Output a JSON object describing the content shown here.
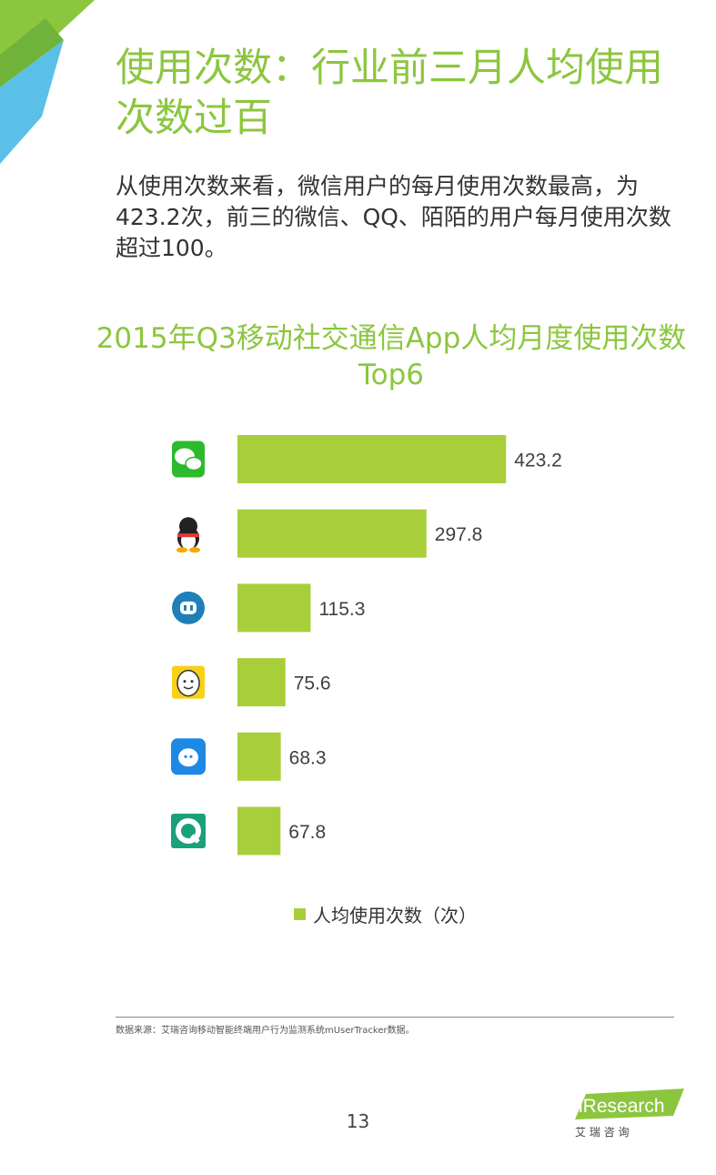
{
  "page": {
    "title": "使用次数：行业前三月人均使用次数过百",
    "subtitle": "从使用次数来看，微信用户的每月使用次数最高，为423.2次，前三的微信、QQ、陌陌的用户每月使用次数超过100。",
    "source": "数据来源：艾瑞咨询移动智能终端用户行为监测系统mUserTracker数据。",
    "page_number": "13",
    "logo_text": "iResearch",
    "logo_subtext": "艾 瑞 咨 询"
  },
  "colors": {
    "accent": "#8cc63f",
    "bar": "#a8cf3a",
    "corner_green": "#8cc63f",
    "corner_blue": "#5bc0e8"
  },
  "chart_data": {
    "type": "bar",
    "orientation": "horizontal",
    "title": "2015年Q3移动社交通信App人均月度使用次数Top6",
    "categories": [
      "wechat-icon",
      "qq-icon",
      "momo-icon",
      "app4-icon",
      "app5-icon",
      "app6-icon"
    ],
    "series": [
      {
        "name": "人均使用次数（次）",
        "values": [
          423.2,
          297.8,
          115.3,
          75.6,
          68.3,
          67.8
        ]
      }
    ],
    "value_labels": [
      "423.2",
      "297.8",
      "115.3",
      "75.6",
      "68.3",
      "67.8"
    ],
    "xlim": [
      0,
      430
    ],
    "grid": false,
    "legend": "bottom"
  }
}
